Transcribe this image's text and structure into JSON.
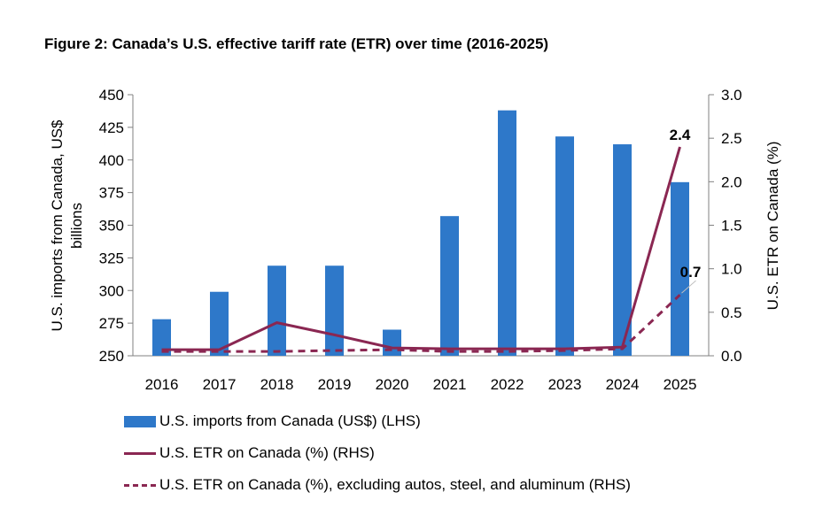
{
  "title": "Figure 2: Canada’s U.S. effective tariff rate (ETR) over time (2016-2025)",
  "colors": {
    "bars": "#2e78c9",
    "lines": "#8a2752"
  },
  "chart_data": {
    "type": "bar",
    "categories": [
      "2016",
      "2017",
      "2018",
      "2019",
      "2020",
      "2021",
      "2022",
      "2023",
      "2024",
      "2025"
    ],
    "ylabel_left_line1": "U.S. imports from Canada, US$",
    "ylabel_left_line2": "billions",
    "ylabel_right": "U.S. ETR on Canada (%)",
    "ylim_left": [
      250,
      450
    ],
    "ylim_right": [
      0,
      3
    ],
    "yticks_left": [
      "250",
      "275",
      "300",
      "325",
      "350",
      "375",
      "400",
      "425",
      "450"
    ],
    "yticks_right": [
      "0.0",
      "0.5",
      "1.0",
      "1.5",
      "2.0",
      "2.5",
      "3.0"
    ],
    "series": [
      {
        "name": "U.S. imports from Canada (US$) (LHS)",
        "type": "bar",
        "axis": "left",
        "values": [
          278,
          299,
          319,
          319,
          270,
          357,
          438,
          418,
          412,
          383
        ]
      },
      {
        "name": "U.S. ETR on Canada (%) (RHS)",
        "type": "line",
        "axis": "right",
        "values": [
          0.07,
          0.07,
          0.38,
          0.24,
          0.09,
          0.08,
          0.08,
          0.08,
          0.1,
          2.4
        ]
      },
      {
        "name": "U.S. ETR on Canada (%), excluding autos, steel, and aluminum (RHS)",
        "type": "dashed-line",
        "axis": "right",
        "values": [
          0.05,
          0.05,
          0.05,
          0.06,
          0.07,
          0.05,
          0.05,
          0.06,
          0.08,
          0.7
        ]
      }
    ],
    "annotations": [
      {
        "text": "2.4",
        "series": 1,
        "index": 9
      },
      {
        "text": "0.7",
        "series": 2,
        "index": 9
      }
    ],
    "grid": false,
    "legend_position": "bottom"
  }
}
